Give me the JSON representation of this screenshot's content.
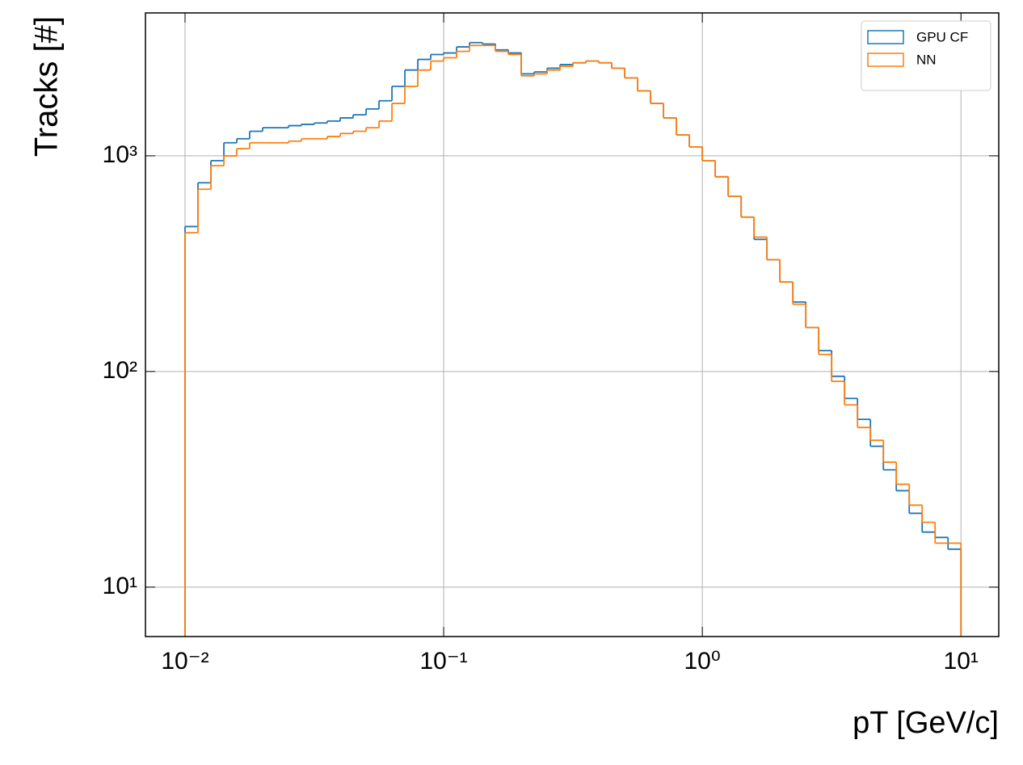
{
  "chart_data": {
    "type": "histogram",
    "x_label": "pT [GeV/c]",
    "y_label": "Tracks [#]",
    "log_x": true,
    "log_y": true,
    "grid": true,
    "legend": "upper right",
    "xlim": [
      0.00703,
      14.0
    ],
    "ylim": [
      5.9,
      4600
    ],
    "xticks": [
      {
        "value": 0.01,
        "label": "10⁻²"
      },
      {
        "value": 0.1,
        "label": "10⁻¹"
      },
      {
        "value": 1,
        "label": "10⁰"
      },
      {
        "value": 10,
        "label": "10¹"
      }
    ],
    "yticks": [
      {
        "value": 10,
        "label": "10¹"
      },
      {
        "value": 100,
        "label": "10²"
      },
      {
        "value": 1000,
        "label": "10³"
      }
    ],
    "bins": [
      0.01,
      0.01122,
      0.01259,
      0.01413,
      0.01585,
      0.01778,
      0.01995,
      0.02239,
      0.02512,
      0.02818,
      0.03162,
      0.03548,
      0.03981,
      0.04467,
      0.05012,
      0.05623,
      0.0631,
      0.07079,
      0.07943,
      0.08913,
      0.1,
      0.1122,
      0.1259,
      0.1413,
      0.1585,
      0.1778,
      0.1995,
      0.2239,
      0.2512,
      0.2818,
      0.3162,
      0.3548,
      0.3981,
      0.4467,
      0.5012,
      0.5623,
      0.631,
      0.7079,
      0.7943,
      0.8913,
      1,
      1.122,
      1.259,
      1.413,
      1.585,
      1.778,
      1.995,
      2.239,
      2.512,
      2.818,
      3.162,
      3.548,
      3.981,
      4.467,
      5.012,
      5.623,
      6.31,
      7.079,
      7.943,
      8.913,
      10
    ],
    "series": [
      {
        "name": "GPU CF",
        "color": "#1f77b4",
        "values": [
          470,
          750,
          950,
          1150,
          1200,
          1300,
          1350,
          1350,
          1380,
          1400,
          1420,
          1450,
          1500,
          1550,
          1650,
          1800,
          2100,
          2500,
          2800,
          2950,
          3000,
          3200,
          3350,
          3300,
          3100,
          3000,
          2400,
          2450,
          2550,
          2650,
          2700,
          2750,
          2700,
          2550,
          2300,
          2000,
          1750,
          1500,
          1250,
          1100,
          950,
          800,
          650,
          520,
          410,
          330,
          260,
          210,
          160,
          125,
          95,
          75,
          60,
          45,
          35,
          28,
          22,
          18,
          17,
          15
        ]
      },
      {
        "name": "NN",
        "color": "#ff7f0e",
        "values": [
          440,
          700,
          900,
          1000,
          1080,
          1150,
          1150,
          1150,
          1170,
          1200,
          1200,
          1230,
          1270,
          1300,
          1350,
          1450,
          1750,
          2100,
          2500,
          2750,
          2850,
          3050,
          3250,
          3250,
          3050,
          2950,
          2350,
          2400,
          2500,
          2600,
          2700,
          2750,
          2700,
          2550,
          2300,
          2000,
          1750,
          1500,
          1250,
          1100,
          950,
          800,
          650,
          520,
          420,
          330,
          260,
          205,
          160,
          120,
          90,
          70,
          55,
          48,
          38,
          30,
          24,
          20,
          16,
          16
        ]
      }
    ]
  }
}
